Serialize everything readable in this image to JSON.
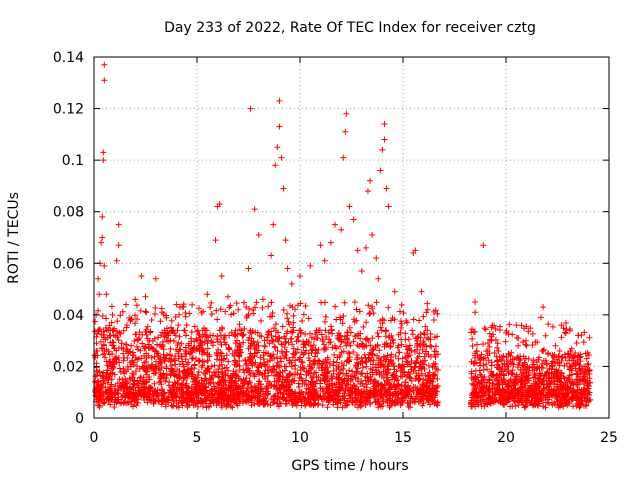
{
  "chart_data": {
    "type": "scatter",
    "title": "Day 233 of 2022, Rate Of TEC Index for receiver cztg",
    "xlabel": "GPS time / hours",
    "ylabel": "ROTI / TECUs",
    "xlim": [
      0,
      25
    ],
    "ylim": [
      0,
      0.14
    ],
    "xticks": [
      0,
      5,
      10,
      15,
      20,
      25
    ],
    "xtick_labels": [
      "0",
      "5",
      "10",
      "15",
      "20",
      "25"
    ],
    "yticks": [
      0,
      0.02,
      0.04,
      0.06,
      0.08,
      0.1,
      0.12,
      0.14
    ],
    "ytick_labels": [
      "0",
      "0.02",
      "0.04",
      "0.06",
      "0.08",
      "0.1",
      "0.12",
      "0.14"
    ],
    "grid": true,
    "marker": "+",
    "color": "#ff0000",
    "data_gap_hours": [
      16.7,
      18.3
    ],
    "series": [
      {
        "name": "ROTI",
        "points": [
          [
            0.1,
            0.04
          ],
          [
            0.2,
            0.054
          ],
          [
            0.25,
            0.048
          ],
          [
            0.3,
            0.06
          ],
          [
            0.35,
            0.068
          ],
          [
            0.4,
            0.078
          ],
          [
            0.45,
            0.1
          ],
          [
            0.45,
            0.103
          ],
          [
            0.5,
            0.131
          ],
          [
            0.5,
            0.137
          ],
          [
            0.4,
            0.07
          ],
          [
            0.5,
            0.059
          ],
          [
            0.6,
            0.048
          ],
          [
            0.9,
            0.04
          ],
          [
            1.2,
            0.067
          ],
          [
            1.2,
            0.075
          ],
          [
            1.1,
            0.061
          ],
          [
            1.6,
            0.036
          ],
          [
            2.0,
            0.046
          ],
          [
            2.3,
            0.055
          ],
          [
            2.5,
            0.047
          ],
          [
            2.8,
            0.038
          ],
          [
            3.0,
            0.054
          ],
          [
            3.3,
            0.041
          ],
          [
            3.6,
            0.032
          ],
          [
            4.0,
            0.044
          ],
          [
            4.5,
            0.036
          ],
          [
            5.0,
            0.03
          ],
          [
            5.5,
            0.048
          ],
          [
            5.9,
            0.069
          ],
          [
            6.0,
            0.082
          ],
          [
            6.1,
            0.083
          ],
          [
            6.2,
            0.055
          ],
          [
            6.5,
            0.047
          ],
          [
            7.0,
            0.042
          ],
          [
            7.5,
            0.058
          ],
          [
            7.6,
            0.12
          ],
          [
            7.8,
            0.081
          ],
          [
            8.0,
            0.071
          ],
          [
            8.2,
            0.046
          ],
          [
            8.6,
            0.063
          ],
          [
            8.7,
            0.075
          ],
          [
            8.8,
            0.098
          ],
          [
            8.9,
            0.105
          ],
          [
            9.0,
            0.113
          ],
          [
            9.0,
            0.123
          ],
          [
            9.1,
            0.101
          ],
          [
            9.2,
            0.089
          ],
          [
            9.3,
            0.069
          ],
          [
            9.4,
            0.058
          ],
          [
            9.6,
            0.052
          ],
          [
            10.0,
            0.055
          ],
          [
            10.5,
            0.059
          ],
          [
            11.0,
            0.067
          ],
          [
            11.2,
            0.061
          ],
          [
            11.5,
            0.068
          ],
          [
            11.7,
            0.075
          ],
          [
            12.0,
            0.073
          ],
          [
            12.1,
            0.101
          ],
          [
            12.2,
            0.111
          ],
          [
            12.25,
            0.118
          ],
          [
            12.4,
            0.082
          ],
          [
            12.6,
            0.077
          ],
          [
            12.8,
            0.065
          ],
          [
            13.0,
            0.057
          ],
          [
            13.2,
            0.066
          ],
          [
            13.3,
            0.088
          ],
          [
            13.4,
            0.092
          ],
          [
            13.5,
            0.071
          ],
          [
            13.7,
            0.062
          ],
          [
            13.8,
            0.054
          ],
          [
            13.9,
            0.096
          ],
          [
            14.0,
            0.104
          ],
          [
            14.1,
            0.108
          ],
          [
            14.1,
            0.114
          ],
          [
            14.2,
            0.089
          ],
          [
            14.3,
            0.082
          ],
          [
            14.6,
            0.049
          ],
          [
            15.2,
            0.037
          ],
          [
            15.5,
            0.064
          ],
          [
            15.6,
            0.065
          ],
          [
            15.9,
            0.049
          ],
          [
            16.2,
            0.042
          ],
          [
            16.5,
            0.038
          ],
          [
            18.5,
            0.041
          ],
          [
            18.5,
            0.045
          ],
          [
            18.9,
            0.067
          ],
          [
            19.3,
            0.03
          ],
          [
            19.6,
            0.029
          ],
          [
            20.0,
            0.033
          ],
          [
            20.5,
            0.036
          ],
          [
            21.0,
            0.028
          ],
          [
            21.7,
            0.039
          ],
          [
            21.8,
            0.043
          ],
          [
            22.4,
            0.028
          ],
          [
            23.0,
            0.025
          ],
          [
            23.5,
            0.032
          ],
          [
            24.0,
            0.021
          ]
        ],
        "dense_band": [
          {
            "x_range": [
              0,
              16.7
            ],
            "y_range": [
              0.004,
              0.03
            ]
          },
          {
            "x_range": [
              18.3,
              24.1
            ],
            "y_range": [
              0.004,
              0.022
            ]
          }
        ]
      }
    ]
  }
}
